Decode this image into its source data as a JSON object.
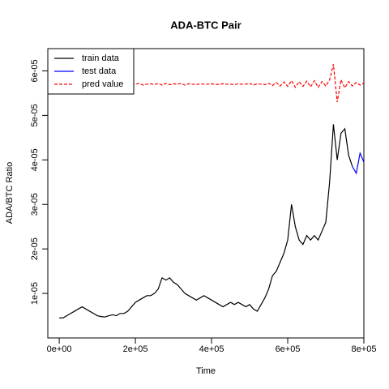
{
  "chart_data": {
    "type": "line",
    "title": "ADA-BTC Pair",
    "x_label": "Time",
    "y_label": "ADA/BTC Ratio",
    "x": [
      0,
      10000,
      20000,
      30000,
      40000,
      50000,
      60000,
      70000,
      80000,
      90000,
      100000,
      110000,
      120000,
      130000,
      140000,
      150000,
      160000,
      170000,
      180000,
      190000,
      200000,
      210000,
      220000,
      230000,
      240000,
      250000,
      260000,
      270000,
      280000,
      290000,
      300000,
      310000,
      320000,
      330000,
      340000,
      350000,
      360000,
      370000,
      380000,
      390000,
      400000,
      410000,
      420000,
      430000,
      440000,
      450000,
      460000,
      470000,
      480000,
      490000,
      500000,
      510000,
      520000,
      530000,
      540000,
      550000,
      560000,
      570000,
      580000,
      590000,
      600000,
      610000,
      620000,
      630000,
      640000,
      650000,
      660000,
      670000,
      680000,
      690000,
      700000,
      710000,
      720000,
      730000,
      740000,
      750000,
      760000,
      770000,
      780000,
      790000,
      800000
    ],
    "series": [
      {
        "name": "train data",
        "color": "#000000",
        "dash": false,
        "values": [
          4.5e-06,
          4.5e-06,
          5e-06,
          5.5e-06,
          6e-06,
          6.5e-06,
          7e-06,
          6.5e-06,
          6e-06,
          5.5e-06,
          5e-06,
          4.8e-06,
          4.7e-06,
          5e-06,
          5.2e-06,
          5e-06,
          5.5e-06,
          5.5e-06,
          6e-06,
          7e-06,
          8e-06,
          8.5e-06,
          9e-06,
          9.5e-06,
          9.5e-06,
          1e-05,
          1.1e-05,
          1.35e-05,
          1.3e-05,
          1.35e-05,
          1.25e-05,
          1.2e-05,
          1.1e-05,
          1e-05,
          9.5e-06,
          9e-06,
          8.5e-06,
          9e-06,
          9.5e-06,
          9e-06,
          8.5e-06,
          8e-06,
          7.5e-06,
          7e-06,
          7.5e-06,
          8e-06,
          7.5e-06,
          8e-06,
          7.5e-06,
          7e-06,
          7.5e-06,
          6.5e-06,
          6e-06,
          7.5e-06,
          9e-06,
          1.1e-05,
          1.4e-05,
          1.5e-05,
          1.7e-05,
          1.9e-05,
          2.2e-05,
          3e-05,
          2.5e-05,
          2.2e-05,
          2.1e-05,
          2.3e-05,
          2.2e-05,
          2.3e-05,
          2.2e-05,
          2.4e-05,
          2.6e-05,
          3.5e-05,
          4.8e-05,
          4e-05,
          4.6e-05,
          4.7e-05,
          4.1e-05,
          3.85e-05,
          null,
          null,
          null
        ]
      },
      {
        "name": "test data",
        "color": "#0000ff",
        "dash": false,
        "values": [
          null,
          null,
          null,
          null,
          null,
          null,
          null,
          null,
          null,
          null,
          null,
          null,
          null,
          null,
          null,
          null,
          null,
          null,
          null,
          null,
          null,
          null,
          null,
          null,
          null,
          null,
          null,
          null,
          null,
          null,
          null,
          null,
          null,
          null,
          null,
          null,
          null,
          null,
          null,
          null,
          null,
          null,
          null,
          null,
          null,
          null,
          null,
          null,
          null,
          null,
          null,
          null,
          null,
          null,
          null,
          null,
          null,
          null,
          null,
          null,
          null,
          null,
          null,
          null,
          null,
          null,
          null,
          null,
          null,
          null,
          null,
          null,
          null,
          null,
          null,
          null,
          null,
          3.85e-05,
          3.7e-05,
          4.15e-05,
          3.95e-05
        ]
      },
      {
        "name": "pred value",
        "color": "#ff0000",
        "dash": true,
        "values": [
          null,
          null,
          null,
          null,
          null,
          5.7e-05,
          5.71e-05,
          5.69e-05,
          5.7e-05,
          5.71e-05,
          5.7e-05,
          5.69e-05,
          5.7e-05,
          5.71e-05,
          5.7e-05,
          5.69e-05,
          5.7e-05,
          5.71e-05,
          5.7e-05,
          5.69e-05,
          5.7e-05,
          5.72e-05,
          5.68e-05,
          5.7e-05,
          5.71e-05,
          5.69e-05,
          5.72e-05,
          5.68e-05,
          5.72e-05,
          5.69e-05,
          5.71e-05,
          5.7e-05,
          5.72e-05,
          5.68e-05,
          5.71e-05,
          5.7e-05,
          5.69e-05,
          5.71e-05,
          5.7e-05,
          5.7e-05,
          5.71e-05,
          5.69e-05,
          5.7e-05,
          5.71e-05,
          5.7e-05,
          5.7e-05,
          5.69e-05,
          5.71e-05,
          5.7e-05,
          5.7e-05,
          5.72e-05,
          5.68e-05,
          5.71e-05,
          5.7e-05,
          5.69e-05,
          5.72e-05,
          5.67e-05,
          5.74e-05,
          5.66e-05,
          5.75e-05,
          5.65e-05,
          5.78e-05,
          5.63e-05,
          5.76e-05,
          5.65e-05,
          5.77e-05,
          5.64e-05,
          5.78e-05,
          5.63e-05,
          5.76e-05,
          5.66e-05,
          5.8e-05,
          6.15e-05,
          5.3e-05,
          5.8e-05,
          5.62e-05,
          5.76e-05,
          5.66e-05,
          5.74e-05,
          5.68e-05,
          5.72e-05
        ]
      }
    ],
    "xlim": [
      -30000,
      800000
    ],
    "ylim": [
      0,
      6.5e-05
    ],
    "xticks": [
      {
        "value": 0,
        "label": "0e+00"
      },
      {
        "value": 200000,
        "label": "2e+05"
      },
      {
        "value": 400000,
        "label": "4e+05"
      },
      {
        "value": 600000,
        "label": "6e+05"
      },
      {
        "value": 800000,
        "label": "8e+05"
      }
    ],
    "yticks": [
      {
        "value": 1e-05,
        "label": "1e-05"
      },
      {
        "value": 2e-05,
        "label": "2e-05"
      },
      {
        "value": 3e-05,
        "label": "3e-05"
      },
      {
        "value": 4e-05,
        "label": "4e-05"
      },
      {
        "value": 5e-05,
        "label": "5e-05"
      },
      {
        "value": 6e-05,
        "label": "6e-05"
      }
    ],
    "legend": "top-left"
  }
}
